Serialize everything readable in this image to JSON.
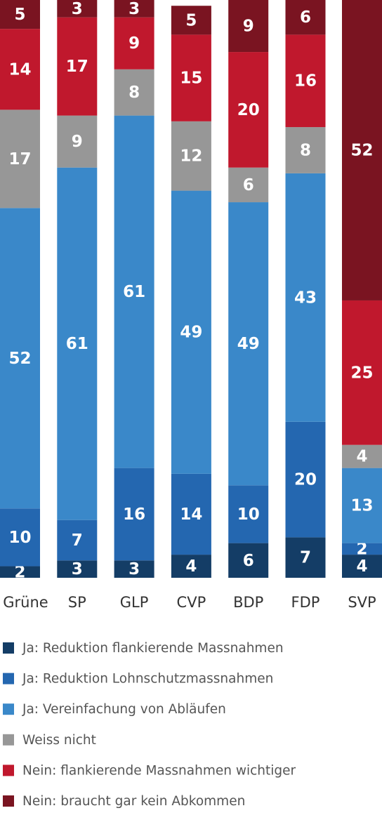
{
  "chart_data": {
    "type": "stacked-bar",
    "categories": [
      "Grüne",
      "SP",
      "GLP",
      "CVP",
      "BDP",
      "FDP",
      "SVP"
    ],
    "series": [
      {
        "name": "Ja: Reduktion flankierende Massnahmen",
        "color": "#143d66",
        "values": [
          2,
          3,
          3,
          4,
          6,
          7,
          4
        ]
      },
      {
        "name": "Ja: Reduktion Lohnschutzmassnahmen",
        "color": "#2467b0",
        "values": [
          10,
          7,
          16,
          14,
          10,
          20,
          2
        ]
      },
      {
        "name": "Ja: Vereinfachung von Abläufen",
        "color": "#3a88c9",
        "values": [
          52,
          61,
          61,
          49,
          49,
          43,
          13
        ]
      },
      {
        "name": "Weiss nicht",
        "color": "#979797",
        "values": [
          17,
          9,
          8,
          12,
          6,
          8,
          4
        ]
      },
      {
        "name": "Nein: flankierende Massnahmen wichtiger",
        "color": "#c0182d",
        "values": [
          14,
          17,
          9,
          15,
          20,
          16,
          25
        ]
      },
      {
        "name": "Nein: braucht gar kein Abkommen",
        "color": "#7a1421",
        "values": [
          5,
          3,
          3,
          5,
          9,
          6,
          52
        ]
      }
    ]
  }
}
